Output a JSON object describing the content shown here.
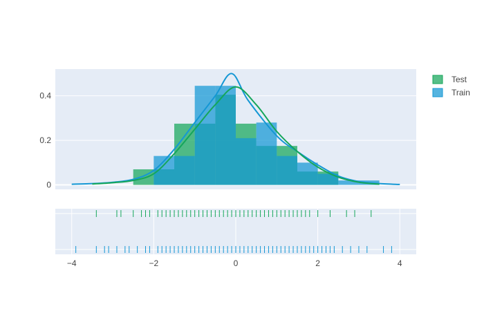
{
  "chart_data": {
    "type": "histogram+kde+rug",
    "title": "",
    "xlabel": "",
    "ylabel": "",
    "xlim": [
      -4.4,
      4.4
    ],
    "ylim": [
      -0.02,
      0.52
    ],
    "x_ticks": [
      "−4",
      "−2",
      "0",
      "2",
      "4"
    ],
    "x_tick_values": [
      -4,
      -2,
      0,
      2,
      4
    ],
    "y_ticks": [
      "0",
      "0.2",
      "0.4"
    ],
    "y_tick_values": [
      0,
      0.2,
      0.4
    ],
    "bin_edges": [
      -2.5,
      -2.0,
      -1.5,
      -1.0,
      -0.5,
      0.0,
      0.5,
      1.0,
      1.5,
      2.0,
      2.5,
      3.0,
      3.5
    ],
    "grid": true,
    "legend_position": "top-right",
    "series": [
      {
        "name": "Test",
        "color": "#15a65a",
        "hist": [
          0.07,
          0.07,
          0.275,
          0.275,
          0.405,
          0.275,
          0.175,
          0.175,
          0.06,
          0.06,
          0.0,
          0.0
        ],
        "kde": [
          [
            -3.5,
            0.004
          ],
          [
            -3.0,
            0.01
          ],
          [
            -2.5,
            0.02
          ],
          [
            -2.0,
            0.05
          ],
          [
            -1.5,
            0.14
          ],
          [
            -1.0,
            0.25
          ],
          [
            -0.5,
            0.36
          ],
          [
            0.0,
            0.44
          ],
          [
            0.5,
            0.36
          ],
          [
            1.0,
            0.24
          ],
          [
            1.5,
            0.15
          ],
          [
            2.0,
            0.08
          ],
          [
            2.5,
            0.035
          ],
          [
            3.0,
            0.012
          ],
          [
            3.5,
            0.003
          ]
        ],
        "rug": [
          -3.4,
          -2.9,
          -2.8,
          -2.5,
          -2.3,
          -2.2,
          -2.1,
          -1.9,
          -1.8,
          -1.7,
          -1.6,
          -1.5,
          -1.4,
          -1.3,
          -1.2,
          -1.1,
          -1.0,
          -0.9,
          -0.8,
          -0.7,
          -0.6,
          -0.5,
          -0.4,
          -0.3,
          -0.2,
          -0.1,
          0.0,
          0.1,
          0.2,
          0.3,
          0.4,
          0.5,
          0.6,
          0.7,
          0.8,
          0.9,
          1.0,
          1.1,
          1.2,
          1.3,
          1.4,
          1.5,
          1.6,
          1.7,
          1.8,
          2.0,
          2.3,
          2.7,
          2.9,
          3.3
        ]
      },
      {
        "name": "Train",
        "color": "#1497d4",
        "hist": [
          0.0,
          0.13,
          0.13,
          0.445,
          0.445,
          0.21,
          0.28,
          0.13,
          0.1,
          0.05,
          0.02,
          0.02
        ],
        "kde": [
          [
            -4.0,
            0.003
          ],
          [
            -3.5,
            0.006
          ],
          [
            -3.0,
            0.012
          ],
          [
            -2.5,
            0.025
          ],
          [
            -2.0,
            0.065
          ],
          [
            -1.5,
            0.16
          ],
          [
            -1.0,
            0.28
          ],
          [
            -0.5,
            0.4
          ],
          [
            -0.1,
            0.5
          ],
          [
            0.3,
            0.38
          ],
          [
            1.0,
            0.22
          ],
          [
            1.5,
            0.15
          ],
          [
            2.0,
            0.09
          ],
          [
            2.5,
            0.04
          ],
          [
            3.0,
            0.015
          ],
          [
            3.5,
            0.006
          ],
          [
            4.0,
            0.002
          ]
        ],
        "rug": [
          -3.9,
          -3.4,
          -3.2,
          -3.1,
          -2.9,
          -2.7,
          -2.6,
          -2.4,
          -2.2,
          -2.1,
          -1.9,
          -1.8,
          -1.7,
          -1.6,
          -1.5,
          -1.4,
          -1.3,
          -1.2,
          -1.1,
          -1.0,
          -0.9,
          -0.8,
          -0.7,
          -0.6,
          -0.5,
          -0.4,
          -0.3,
          -0.2,
          -0.1,
          0.0,
          0.1,
          0.2,
          0.3,
          0.4,
          0.5,
          0.6,
          0.7,
          0.8,
          0.9,
          1.0,
          1.1,
          1.2,
          1.3,
          1.4,
          1.5,
          1.6,
          1.7,
          1.8,
          1.9,
          2.0,
          2.1,
          2.2,
          2.3,
          2.4,
          2.6,
          2.8,
          3.0,
          3.2,
          3.6,
          3.8
        ]
      }
    ]
  }
}
